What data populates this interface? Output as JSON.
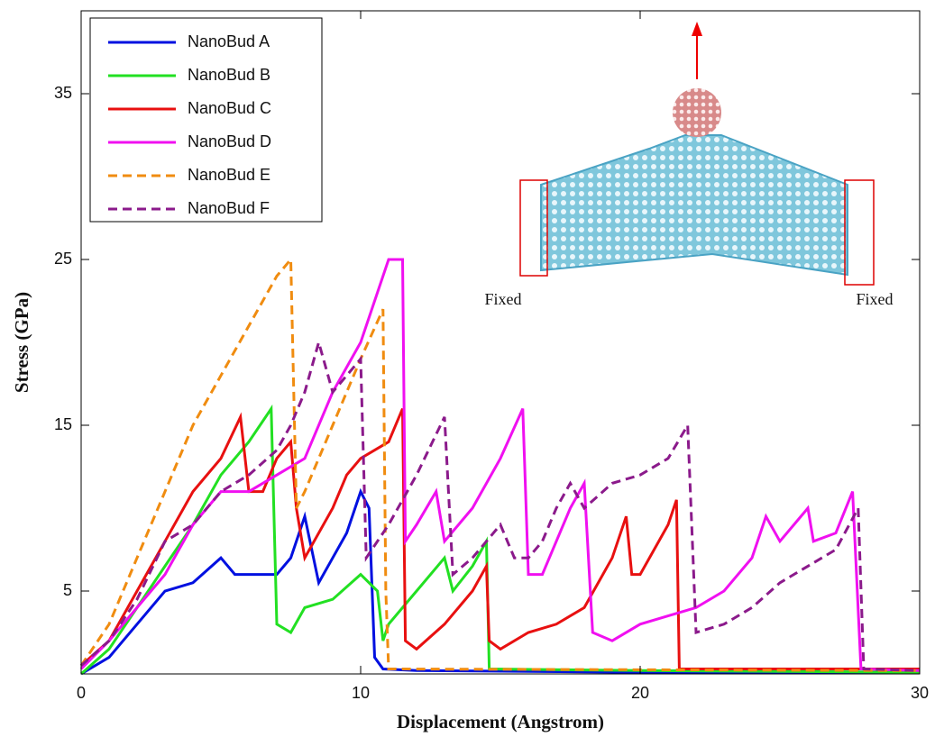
{
  "chart_data": {
    "type": "line",
    "xlabel": "Displacement (Angstrom)",
    "ylabel": "Stress (GPa)",
    "xlim": [
      0,
      30
    ],
    "xticks": [
      0,
      10,
      20,
      30
    ],
    "ylim": [
      0,
      40
    ],
    "yticks": [
      5,
      15,
      25,
      35
    ],
    "legend": "upper left",
    "annotations": [
      "Fixed",
      "Fixed"
    ],
    "series": [
      {
        "name": "NanoBud A",
        "color": "#0010e0",
        "dashed": false,
        "x": [
          0,
          1,
          2,
          3,
          4,
          5,
          5.5,
          6,
          7,
          7.5,
          8,
          8.5,
          9,
          9.5,
          10,
          10.3,
          10.5,
          10.8,
          12,
          20,
          30
        ],
        "values": [
          0,
          1,
          3,
          5,
          5.5,
          7,
          6,
          6,
          6,
          7,
          9.5,
          5.5,
          7,
          8.5,
          11,
          10,
          1,
          0.3,
          0.2,
          0.1,
          0.1
        ]
      },
      {
        "name": "NanoBud B",
        "color": "#22e022",
        "dashed": false,
        "x": [
          0,
          1,
          2,
          3,
          4,
          5,
          6,
          6.8,
          7,
          7.5,
          8,
          9,
          10,
          10.6,
          10.8,
          11,
          12,
          13,
          13.3,
          14,
          14.5,
          14.6,
          20,
          30
        ],
        "values": [
          0,
          1.5,
          4,
          6.5,
          9,
          12,
          14,
          16,
          3,
          2.5,
          4,
          4.5,
          6,
          5,
          2,
          3,
          5,
          7,
          5,
          6.5,
          8,
          0.3,
          0.2,
          0.1
        ]
      },
      {
        "name": "NanoBud C",
        "color": "#e81010",
        "dashed": false,
        "x": [
          0,
          1,
          2,
          3,
          4,
          5,
          5.7,
          6,
          6.5,
          7,
          7.5,
          7.7,
          8,
          9,
          9.5,
          10,
          11,
          11.5,
          11.6,
          12,
          13,
          14,
          14.5,
          14.6,
          15,
          16,
          17,
          18,
          19,
          19.5,
          19.7,
          20,
          21,
          21.3,
          21.4,
          30
        ],
        "values": [
          0.5,
          2,
          5,
          8,
          11,
          13,
          15.5,
          11,
          11,
          13,
          14,
          10,
          7,
          10,
          12,
          13,
          14,
          16,
          2,
          1.5,
          3,
          5,
          6.5,
          2,
          1.5,
          2.5,
          3,
          4,
          7,
          9.5,
          6,
          6,
          9,
          10.5,
          0.3,
          0.3
        ]
      },
      {
        "name": "NanoBud D",
        "color": "#f010f0",
        "dashed": false,
        "x": [
          0,
          1,
          2,
          3,
          4,
          5,
          6,
          7,
          8,
          9,
          10,
          11,
          11.5,
          11.6,
          12,
          12.7,
          13,
          14,
          15,
          15.8,
          16,
          16.5,
          17,
          17.5,
          18,
          18.3,
          19,
          20,
          21,
          22,
          23,
          24,
          24.5,
          25,
          26,
          26.2,
          27,
          27.6,
          27.9,
          30
        ],
        "values": [
          0.3,
          2,
          4,
          6,
          9,
          11,
          11,
          12,
          13,
          17,
          20,
          25,
          25,
          8,
          9,
          11,
          8,
          10,
          13,
          16,
          6,
          6,
          8,
          10,
          11.5,
          2.5,
          2,
          3,
          3.5,
          4,
          5,
          7,
          9.5,
          8,
          10,
          8,
          8.5,
          11,
          0.3,
          0.2
        ]
      },
      {
        "name": "NanoBud E",
        "color": "#f08c10",
        "dashed": true,
        "x": [
          0,
          1,
          2,
          3,
          4,
          5,
          6,
          7,
          7.5,
          7.7,
          8,
          9,
          10,
          10.8,
          10.9,
          11,
          30
        ],
        "values": [
          0.5,
          3,
          7,
          11,
          15,
          18,
          21,
          24,
          25,
          10,
          11,
          15,
          19,
          22,
          5,
          0.3,
          0.2
        ]
      },
      {
        "name": "NanoBud F",
        "color": "#8b1a8b",
        "dashed": true,
        "x": [
          0,
          1,
          2,
          3,
          4,
          5,
          6,
          7,
          7.5,
          8,
          8.5,
          9,
          9.5,
          10,
          10.2,
          11,
          12,
          13,
          13.3,
          14,
          15,
          15.5,
          16,
          16.5,
          17,
          17.5,
          18,
          19,
          20,
          21,
          21.7,
          22,
          23,
          24,
          25,
          26,
          27,
          27.8,
          28,
          30
        ],
        "values": [
          0.5,
          2,
          4.5,
          8,
          9,
          11,
          12,
          13.5,
          15,
          17,
          20,
          17,
          18,
          19,
          7,
          9,
          12,
          15.5,
          6,
          7,
          9,
          7,
          7,
          8,
          10,
          11.5,
          10,
          11.5,
          12,
          13,
          15,
          2.5,
          3,
          4,
          5.5,
          6.5,
          7.5,
          10,
          0.3,
          0.2
        ]
      }
    ]
  }
}
